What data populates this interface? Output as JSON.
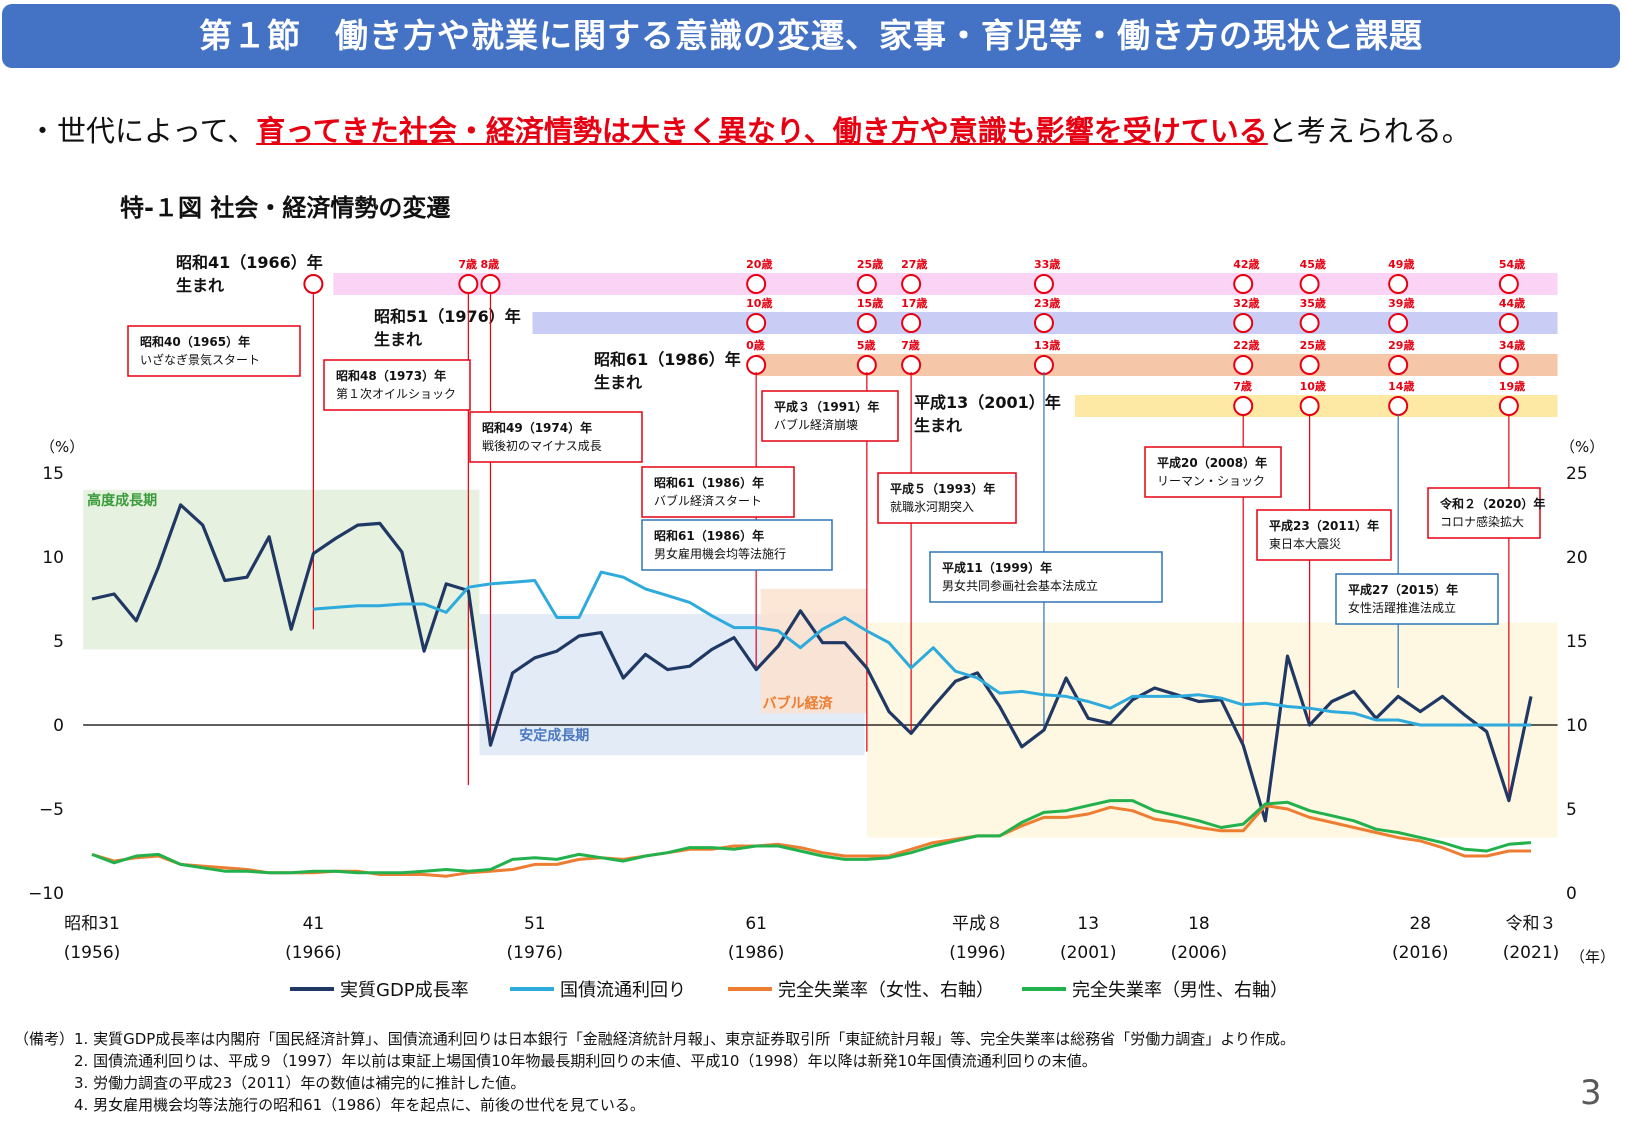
{
  "header": {
    "title": "第１節　働き方や就業に関する意識の変遷、家事・育児等・働き方の現状と課題"
  },
  "lead": {
    "prefix": "・世代によって、",
    "emphasis": "育ってきた社会・経済情勢は大きく異なり、働き方や意識も影響を受けている",
    "suffix": "と考えられる。"
  },
  "figure_title": "特-１図 社会・経済情勢の変遷",
  "notes": "（備考）1. 実質GDP成長率は内閣府「国民経済計算」、国債流通利回りは日本銀行「金融経済統計月報」、東京証券取引所「東証統計月報」等、完全失業率は総務省「労働力調査」より作成。\n　　　　2. 国債流通利回りは、平成９（1997）年以前は東証上場国債10年物最長期利回りの末値、平成10（1998）年以降は新発10年国債流通利回りの末値。\n　　　　3. 労働力調査の平成23（2011）年の数値は補完的に推計した値。\n　　　　4. 男女雇用機会均等法施行の昭和61（1986）年を起点に、前後の世代を見ている。",
  "page_number": "3",
  "colors": {
    "banner": "#4472c4",
    "red": "#e60012",
    "gdp": "#203864",
    "bond": "#2eaadc",
    "unemp_female": "#ed7d31",
    "unemp_male": "#22b14c"
  },
  "chart_data": {
    "type": "line",
    "x_range": [
      1956,
      2021
    ],
    "y_left": {
      "unit": "（%）",
      "range": [
        -10,
        15
      ],
      "ticks": [
        15,
        10,
        5,
        0,
        -5,
        -10
      ],
      "tick_labels": [
        "15",
        "10",
        "5",
        "0",
        "−5",
        "−10"
      ]
    },
    "y_right": {
      "unit": "（%）",
      "range": [
        0,
        25
      ],
      "ticks": [
        25,
        20,
        15,
        10,
        5,
        0
      ],
      "tick_labels": [
        "25",
        "20",
        "15",
        "10",
        "5",
        "0"
      ]
    },
    "x_unit": "（年）",
    "x_ticks": [
      {
        "year": 1956,
        "era": "昭和31",
        "western": "(1956)"
      },
      {
        "year": 1966,
        "era": "41",
        "western": "(1966)"
      },
      {
        "year": 1976,
        "era": "51",
        "western": "(1976)"
      },
      {
        "year": 1986,
        "era": "61",
        "western": "(1986)"
      },
      {
        "year": 1996,
        "era": "平成８",
        "western": "(1996)"
      },
      {
        "year": 2001,
        "era": "13",
        "western": "(2001)"
      },
      {
        "year": 2006,
        "era": "18",
        "western": "(2006)"
      },
      {
        "year": 2016,
        "era": "28",
        "western": "(2016)"
      },
      {
        "year": 2021,
        "era": "令和３",
        "western": "(2021)"
      }
    ],
    "periods": [
      {
        "label": "高度成長期",
        "start": 1955.6,
        "end": 1973.5,
        "top": 14.0,
        "bottom": 4.5,
        "color": "#e2efda",
        "text_color": "#3a9c3a"
      },
      {
        "label": "安定成長期",
        "start": 1973.5,
        "end": 1990.9,
        "top": 6.6,
        "bottom": -1.8,
        "color": "#dde7f5",
        "text_color": "#4a78c0"
      },
      {
        "label": "バブル経済",
        "start": 1986.2,
        "end": 1991.0,
        "top": 8.1,
        "bottom": 0.7,
        "color": "#fbe2cf",
        "text_color": "#ed7d31"
      },
      {
        "label": "",
        "start": 1991.0,
        "end": 2022.2,
        "top": 6.1,
        "bottom": -6.7,
        "color": "#fef6dc",
        "text_color": "#000000"
      }
    ],
    "series": [
      {
        "name": "実質GDP成長率",
        "axis": "left",
        "start_year": 1956,
        "values": [
          7.5,
          7.8,
          6.2,
          9.4,
          13.1,
          11.9,
          8.6,
          8.8,
          11.2,
          5.7,
          10.2,
          11.1,
          11.9,
          12.0,
          10.3,
          4.4,
          8.4,
          8.0,
          -1.2,
          3.1,
          4.0,
          4.4,
          5.3,
          5.5,
          2.8,
          4.2,
          3.3,
          3.5,
          4.5,
          5.2,
          3.3,
          4.7,
          6.8,
          4.9,
          4.9,
          3.4,
          0.8,
          -0.5,
          1.1,
          2.6,
          3.1,
          1.1,
          -1.3,
          -0.3,
          2.8,
          0.4,
          0.1,
          1.5,
          2.2,
          1.8,
          1.4,
          1.5,
          -1.2,
          -5.7,
          4.1,
          0.0,
          1.4,
          2.0,
          0.4,
          1.7,
          0.8,
          1.7,
          0.6,
          -0.4,
          -4.5,
          1.7
        ]
      },
      {
        "name": "国債流通利回り",
        "axis": "right",
        "start_year": 1966,
        "values": [
          16.9,
          17.0,
          17.1,
          17.1,
          17.2,
          17.2,
          16.7,
          18.2,
          18.4,
          18.5,
          18.6,
          16.4,
          16.4,
          19.1,
          18.8,
          18.1,
          17.7,
          17.3,
          16.5,
          15.8,
          15.8,
          15.6,
          14.6,
          15.7,
          16.4,
          15.6,
          14.9,
          13.4,
          14.6,
          13.2,
          12.8,
          11.9,
          12.0,
          11.8,
          11.7,
          11.4,
          11.0,
          11.7,
          11.7,
          11.7,
          11.8,
          11.6,
          11.2,
          11.3,
          11.1,
          11.0,
          10.8,
          10.7,
          10.3,
          10.3,
          10.0,
          10.0,
          10.0,
          10.0,
          10.0,
          10.0
        ]
      },
      {
        "name": "完全失業率（女性、右軸）",
        "axis": "right",
        "start_year": 1956,
        "values": [
          2.3,
          1.9,
          2.1,
          2.2,
          1.7,
          1.6,
          1.5,
          1.4,
          1.2,
          1.2,
          1.2,
          1.3,
          1.3,
          1.1,
          1.1,
          1.1,
          1.0,
          1.2,
          1.3,
          1.4,
          1.7,
          1.7,
          2.0,
          2.1,
          2.0,
          2.2,
          2.4,
          2.6,
          2.6,
          2.8,
          2.8,
          2.9,
          2.7,
          2.4,
          2.2,
          2.2,
          2.2,
          2.6,
          3.0,
          3.2,
          3.4,
          3.4,
          4.0,
          4.5,
          4.5,
          4.7,
          5.1,
          4.9,
          4.4,
          4.2,
          3.9,
          3.7,
          3.7,
          5.2,
          5.0,
          4.5,
          4.2,
          3.9,
          3.6,
          3.3,
          3.1,
          2.7,
          2.2,
          2.2,
          2.5,
          2.5
        ]
      },
      {
        "name": "完全失業率（男性、右軸）",
        "axis": "right",
        "start_year": 1956,
        "values": [
          2.3,
          1.8,
          2.2,
          2.3,
          1.7,
          1.5,
          1.3,
          1.3,
          1.2,
          1.2,
          1.3,
          1.3,
          1.2,
          1.2,
          1.2,
          1.3,
          1.4,
          1.3,
          1.4,
          2.0,
          2.1,
          2.0,
          2.3,
          2.1,
          1.9,
          2.2,
          2.4,
          2.7,
          2.7,
          2.6,
          2.8,
          2.8,
          2.5,
          2.2,
          2.0,
          2.0,
          2.1,
          2.4,
          2.8,
          3.1,
          3.4,
          3.4,
          4.2,
          4.8,
          4.9,
          5.2,
          5.5,
          5.5,
          4.9,
          4.6,
          4.3,
          3.9,
          4.1,
          5.3,
          5.4,
          4.9,
          4.6,
          4.3,
          3.8,
          3.6,
          3.3,
          3.0,
          2.6,
          2.5,
          2.9,
          3.0
        ]
      }
    ],
    "cohorts": [
      {
        "label": "昭和41（1966）年\n生まれ",
        "birth_year": 1966,
        "band_start": 1966.9,
        "band_color": "#fbd3f5",
        "ages": [
          {
            "age": "7歳",
            "year": 1973
          },
          {
            "age": "8歳",
            "year": 1974
          },
          {
            "age": "20歳",
            "year": 1986
          },
          {
            "age": "25歳",
            "year": 1991
          },
          {
            "age": "27歳",
            "year": 1993
          },
          {
            "age": "33歳",
            "year": 1999
          },
          {
            "age": "42歳",
            "year": 2008
          },
          {
            "age": "45歳",
            "year": 2011
          },
          {
            "age": "49歳",
            "year": 2015
          },
          {
            "age": "54歳",
            "year": 2020
          }
        ]
      },
      {
        "label": "昭和51（1976）年\n生まれ",
        "birth_year": 1976,
        "band_start": 1975.9,
        "band_color": "#c9cdf5",
        "ages": [
          {
            "age": "10歳",
            "year": 1986
          },
          {
            "age": "15歳",
            "year": 1991
          },
          {
            "age": "17歳",
            "year": 1993
          },
          {
            "age": "23歳",
            "year": 1999
          },
          {
            "age": "32歳",
            "year": 2008
          },
          {
            "age": "35歳",
            "year": 2011
          },
          {
            "age": "39歳",
            "year": 2015
          },
          {
            "age": "44歳",
            "year": 2020
          }
        ]
      },
      {
        "label": "昭和61（1986）年\n生まれ",
        "birth_year": 1986,
        "band_start": 1986.0,
        "band_color": "#f6c6a8",
        "ages": [
          {
            "age": "0歳",
            "year": 1986
          },
          {
            "age": "5歳",
            "year": 1991
          },
          {
            "age": "7歳",
            "year": 1993
          },
          {
            "age": "13歳",
            "year": 1999
          },
          {
            "age": "22歳",
            "year": 2008
          },
          {
            "age": "25歳",
            "year": 2011
          },
          {
            "age": "29歳",
            "year": 2015
          },
          {
            "age": "34歳",
            "year": 2020
          }
        ]
      },
      {
        "label": "平成13（2001）年\n生まれ",
        "birth_year": 2001,
        "band_start": 2000.4,
        "band_color": "#fde8a4",
        "ages": [
          {
            "age": "7歳",
            "year": 2008
          },
          {
            "age": "10歳",
            "year": 2011
          },
          {
            "age": "14歳",
            "year": 2015
          },
          {
            "age": "19歳",
            "year": 2020
          }
        ]
      }
    ],
    "events": [
      {
        "year_text": "昭和40（1965）年",
        "text": "いざなぎ景気スタート",
        "color": "red"
      },
      {
        "year_text": "昭和48（1973）年",
        "text": "第１次オイルショック",
        "color": "red"
      },
      {
        "year_text": "昭和49（1974）年",
        "text": "戦後初のマイナス成長",
        "color": "red"
      },
      {
        "year_text": "昭和61（1986）年",
        "text": "バブル経済スタート",
        "color": "red"
      },
      {
        "year_text": "昭和61（1986）年",
        "text": "男女雇用機会均等法施行",
        "color": "blue"
      },
      {
        "year_text": "平成３（1991）年",
        "text": "バブル経済崩壊",
        "color": "red"
      },
      {
        "year_text": "平成５（1993）年",
        "text": "就職氷河期突入",
        "color": "red"
      },
      {
        "year_text": "平成11（1999）年",
        "text": "男女共同参画社会基本法成立",
        "color": "blue"
      },
      {
        "year_text": "平成20（2008）年",
        "text": "リーマン・ショック",
        "color": "red"
      },
      {
        "year_text": "平成23（2011）年",
        "text": "東日本大震災",
        "color": "red"
      },
      {
        "year_text": "平成27（2015）年",
        "text": "女性活躍推進法成立",
        "color": "blue"
      },
      {
        "year_text": "令和２（2020）年",
        "text": "コロナ感染拡大",
        "color": "red"
      }
    ],
    "legend_position": "bottom",
    "grid": false
  }
}
